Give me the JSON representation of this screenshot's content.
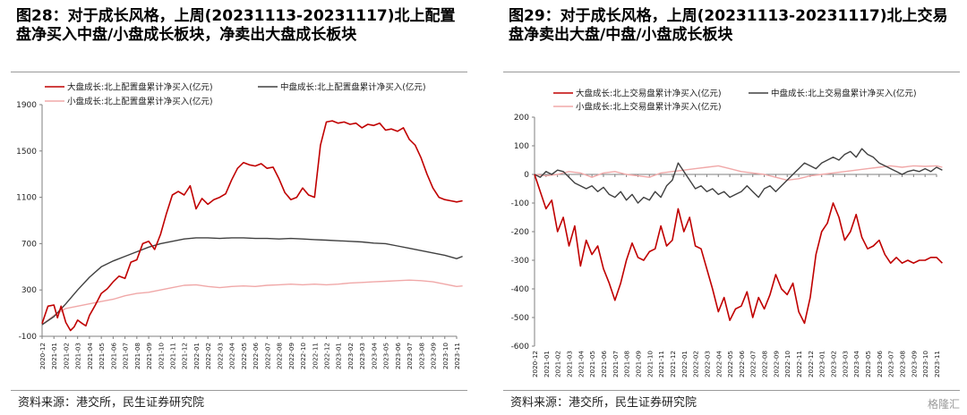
{
  "source_text": "资料来源：港交所，民生证券研究院",
  "watermark": "格隆汇",
  "chart_data": [
    {
      "type": "line",
      "title": "图28：对于成长风格，上周(20231113-20231117)北上配置盘净买入中盘/小盘成长板块，净卖出大盘成长板块",
      "xlabel": "",
      "ylabel": "",
      "x_tick_labels": [
        "2020-12",
        "2021-01",
        "2021-02",
        "2021-03",
        "2021-04",
        "2021-05",
        "2021-06",
        "2021-07",
        "2021-08",
        "2021-09",
        "2021-10",
        "2021-11",
        "2021-12",
        "2022-01",
        "2022-02",
        "2022-03",
        "2022-04",
        "2022-05",
        "2022-06",
        "2022-07",
        "2022-08",
        "2022-09",
        "2022-10",
        "2022-11",
        "2022-12",
        "2023-01",
        "2023-02",
        "2023-03",
        "2023-04",
        "2023-05",
        "2023-06",
        "2023-07",
        "2023-08",
        "2023-09",
        "2023-10",
        "2023-11"
      ],
      "yticks": [
        -100,
        300,
        700,
        1100,
        1500,
        1900
      ],
      "ylim": [
        -100,
        1900
      ],
      "legend_position": "top",
      "grid": false,
      "series": [
        {
          "name": "大盘成长:北上配置盘累计净买入(亿元)",
          "color": "#c00000",
          "x": [
            0,
            0.5,
            1,
            1.3,
            1.6,
            2,
            2.4,
            2.7,
            3,
            3.4,
            3.7,
            4,
            4.5,
            5,
            5.5,
            6,
            6.5,
            7,
            7.5,
            8,
            8.5,
            9,
            9.5,
            10,
            10.5,
            11,
            11.5,
            12,
            12.5,
            13,
            13.5,
            14,
            14.5,
            15,
            15.5,
            16,
            16.5,
            17,
            17.5,
            18,
            18.5,
            19,
            19.5,
            20,
            20.5,
            21,
            21.5,
            22,
            22.5,
            23,
            23.5,
            24,
            24.5,
            25,
            25.5,
            26,
            26.5,
            27,
            27.5,
            28,
            28.5,
            29,
            29.5,
            30,
            30.5,
            31,
            31.5,
            32,
            32.5,
            33,
            33.5,
            34,
            34.5,
            35,
            35.5
          ],
          "values": [
            10,
            160,
            170,
            60,
            160,
            20,
            -50,
            -20,
            40,
            10,
            -10,
            80,
            170,
            270,
            310,
            370,
            420,
            400,
            540,
            560,
            700,
            720,
            650,
            780,
            960,
            1120,
            1150,
            1120,
            1200,
            1000,
            1090,
            1040,
            1080,
            1100,
            1130,
            1250,
            1350,
            1400,
            1380,
            1370,
            1390,
            1350,
            1360,
            1260,
            1140,
            1080,
            1100,
            1180,
            1120,
            1100,
            1550,
            1750,
            1760,
            1740,
            1750,
            1730,
            1740,
            1700,
            1730,
            1720,
            1740,
            1680,
            1690,
            1670,
            1700,
            1600,
            1550,
            1440,
            1300,
            1180,
            1100,
            1080,
            1070,
            1060,
            1070
          ]
        },
        {
          "name": "中盘成长:北上配置盘累计净买入(亿元)",
          "color": "#404040",
          "x": [
            0,
            1,
            2,
            3,
            4,
            5,
            6,
            7,
            8,
            9,
            10,
            11,
            12,
            13,
            14,
            15,
            16,
            17,
            18,
            19,
            20,
            21,
            22,
            23,
            24,
            25,
            26,
            27,
            28,
            29,
            30,
            31,
            32,
            33,
            34,
            35,
            35.5
          ],
          "values": [
            0,
            70,
            180,
            300,
            410,
            500,
            550,
            590,
            630,
            670,
            700,
            720,
            740,
            750,
            750,
            745,
            750,
            750,
            745,
            745,
            740,
            745,
            740,
            735,
            730,
            725,
            720,
            715,
            705,
            700,
            680,
            660,
            640,
            620,
            600,
            570,
            590
          ]
        },
        {
          "name": "小盘成长:北上配置盘累计净买入(亿元)",
          "color": "#f0a8a8",
          "x": [
            0,
            1,
            2,
            3,
            4,
            5,
            6,
            7,
            8,
            9,
            10,
            11,
            12,
            13,
            14,
            15,
            16,
            17,
            18,
            19,
            20,
            21,
            22,
            23,
            24,
            25,
            26,
            27,
            28,
            29,
            30,
            31,
            32,
            33,
            34,
            35,
            35.5
          ],
          "values": [
            0,
            80,
            140,
            160,
            180,
            200,
            220,
            250,
            270,
            280,
            300,
            320,
            340,
            345,
            330,
            320,
            330,
            335,
            330,
            340,
            345,
            350,
            345,
            350,
            345,
            350,
            360,
            365,
            370,
            375,
            380,
            385,
            380,
            370,
            350,
            330,
            335
          ]
        }
      ]
    },
    {
      "type": "line",
      "title": "图29：对于成长风格，上周(20231113-20231117)北上交易盘净卖出大盘/中盘/小盘成长板块",
      "xlabel": "",
      "ylabel": "",
      "x_tick_labels": [
        "2020-12",
        "2021-01",
        "2021-02",
        "2021-03",
        "2021-04",
        "2021-05",
        "2021-06",
        "2021-07",
        "2021-08",
        "2021-09",
        "2021-10",
        "2021-11",
        "2021-12",
        "2022-01",
        "2022-02",
        "2022-03",
        "2022-04",
        "2022-05",
        "2022-06",
        "2022-07",
        "2022-08",
        "2022-09",
        "2022-10",
        "2022-11",
        "2022-12",
        "2023-01",
        "2023-02",
        "2023-03",
        "2023-04",
        "2023-05",
        "2023-06",
        "2023-07",
        "2023-08",
        "2023-09",
        "2023-10",
        "2023-11"
      ],
      "yticks": [
        -600,
        -500,
        -400,
        -300,
        -200,
        -100,
        0,
        100,
        200
      ],
      "ylim": [
        -600,
        200
      ],
      "legend_position": "top",
      "grid": false,
      "series": [
        {
          "name": "大盘成长:北上交易盘累计净买入(亿元)",
          "color": "#c00000",
          "x": [
            0,
            0.5,
            1,
            1.5,
            2,
            2.5,
            3,
            3.5,
            4,
            4.5,
            5,
            5.5,
            6,
            6.5,
            7,
            7.5,
            8,
            8.5,
            9,
            9.5,
            10,
            10.5,
            11,
            11.5,
            12,
            12.5,
            13,
            13.5,
            14,
            14.5,
            15,
            15.5,
            16,
            16.5,
            17,
            17.5,
            18,
            18.5,
            19,
            19.5,
            20,
            20.5,
            21,
            21.5,
            22,
            22.5,
            23,
            23.5,
            24,
            24.5,
            25,
            25.5,
            26,
            26.5,
            27,
            27.5,
            28,
            28.5,
            29,
            29.5,
            30,
            30.5,
            31,
            31.5,
            32,
            32.5,
            33,
            33.5,
            34,
            34.5,
            35,
            35.5
          ],
          "values": [
            0,
            -60,
            -120,
            -90,
            -200,
            -150,
            -250,
            -180,
            -320,
            -230,
            -280,
            -250,
            -330,
            -380,
            -440,
            -380,
            -300,
            -240,
            -290,
            -300,
            -270,
            -260,
            -180,
            -250,
            -230,
            -120,
            -200,
            -150,
            -250,
            -260,
            -330,
            -400,
            -480,
            -430,
            -510,
            -470,
            -460,
            -410,
            -500,
            -430,
            -470,
            -420,
            -350,
            -400,
            -420,
            -380,
            -480,
            -520,
            -430,
            -280,
            -200,
            -170,
            -100,
            -150,
            -230,
            -200,
            -140,
            -220,
            -260,
            -250,
            -230,
            -280,
            -310,
            -290,
            -310,
            -300,
            -310,
            -300,
            -300,
            -290,
            -290,
            -310
          ]
        },
        {
          "name": "中盘成长:北上交易盘累计净买入(亿元)",
          "color": "#404040",
          "x": [
            0,
            0.5,
            1,
            1.5,
            2,
            2.5,
            3,
            3.5,
            4,
            4.5,
            5,
            5.5,
            6,
            6.5,
            7,
            7.5,
            8,
            8.5,
            9,
            9.5,
            10,
            10.5,
            11,
            11.5,
            12,
            12.5,
            13,
            13.5,
            14,
            14.5,
            15,
            15.5,
            16,
            16.5,
            17,
            17.5,
            18,
            18.5,
            19,
            19.5,
            20,
            20.5,
            21,
            21.5,
            22,
            22.5,
            23,
            23.5,
            24,
            24.5,
            25,
            25.5,
            26,
            26.5,
            27,
            27.5,
            28,
            28.5,
            29,
            29.5,
            30,
            30.5,
            31,
            31.5,
            32,
            32.5,
            33,
            33.5,
            34,
            34.5,
            35,
            35.5
          ],
          "values": [
            0,
            -10,
            10,
            0,
            15,
            10,
            -10,
            -30,
            -40,
            -50,
            -40,
            -60,
            -45,
            -70,
            -80,
            -60,
            -90,
            -70,
            -100,
            -80,
            -90,
            -60,
            -80,
            -40,
            -20,
            40,
            10,
            -20,
            -50,
            -40,
            -60,
            -50,
            -70,
            -60,
            -80,
            -70,
            -60,
            -40,
            -60,
            -80,
            -50,
            -40,
            -60,
            -40,
            -20,
            0,
            20,
            40,
            30,
            20,
            40,
            50,
            60,
            50,
            70,
            80,
            60,
            90,
            70,
            60,
            40,
            30,
            20,
            10,
            0,
            10,
            15,
            10,
            20,
            10,
            25,
            15
          ]
        },
        {
          "name": "小盘成长:北上交易盘累计净买入(亿元)",
          "color": "#f0a8a8",
          "x": [
            0,
            1,
            2,
            3,
            4,
            5,
            6,
            7,
            8,
            9,
            10,
            11,
            12,
            13,
            14,
            15,
            16,
            17,
            18,
            19,
            20,
            21,
            22,
            23,
            24,
            25,
            26,
            27,
            28,
            29,
            30,
            31,
            32,
            33,
            34,
            35,
            35.5
          ],
          "values": [
            0,
            -5,
            0,
            10,
            5,
            -10,
            5,
            10,
            0,
            -5,
            -10,
            5,
            10,
            15,
            20,
            25,
            30,
            20,
            10,
            5,
            0,
            -10,
            -20,
            -15,
            -5,
            0,
            5,
            10,
            15,
            20,
            25,
            30,
            25,
            30,
            28,
            30,
            25
          ]
        }
      ]
    }
  ]
}
